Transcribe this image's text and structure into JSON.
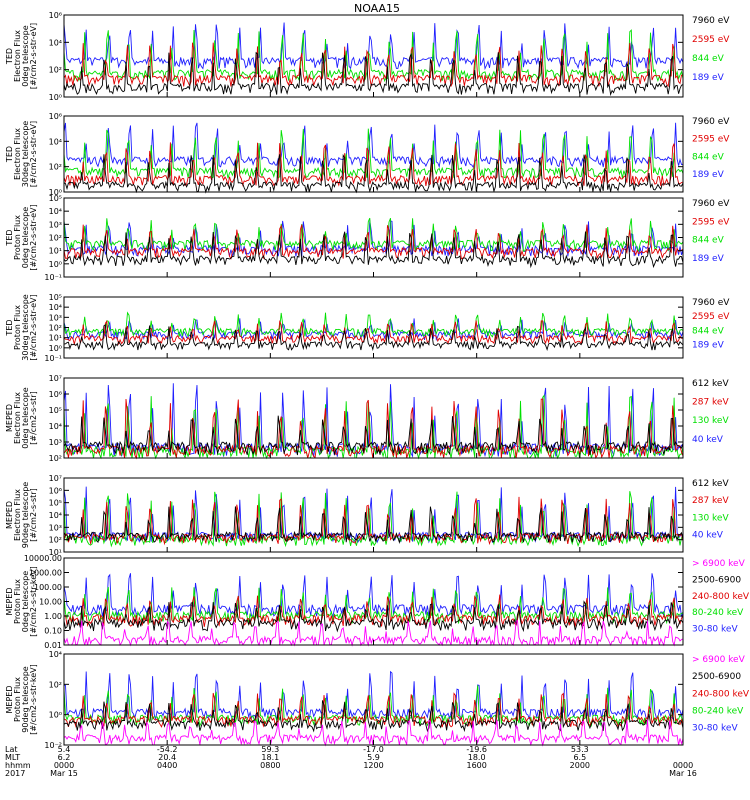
{
  "title": "NOAA15",
  "colors": {
    "ch1": "#1f1fff",
    "ch2": "#e00000",
    "ch3": "#00e000",
    "ch4": "#000000",
    "ch5": "#ff00ff"
  },
  "footer": {
    "row_labels": [
      "Lat",
      "MLT",
      "hhmm",
      "2017"
    ],
    "ticks": [
      {
        "lat": "5.4",
        "mlt": "6.2",
        "hhmm": "0000",
        "date": "Mar 15"
      },
      {
        "lat": "-54.2",
        "mlt": "20.4",
        "hhmm": "0400",
        "date": ""
      },
      {
        "lat": "59.3",
        "mlt": "18.1",
        "hhmm": "0800",
        "date": ""
      },
      {
        "lat": "-17.0",
        "mlt": "5.9",
        "hhmm": "1200",
        "date": ""
      },
      {
        "lat": "-19.6",
        "mlt": "18.0",
        "hhmm": "1600",
        "date": ""
      },
      {
        "lat": "53.3",
        "mlt": "6.5",
        "hhmm": "2000",
        "date": ""
      },
      {
        "lat": "",
        "mlt": "",
        "hhmm": "0000",
        "date": "Mar 16"
      }
    ]
  },
  "chart_data": [
    {
      "type": "line",
      "ylabel": [
        "TED",
        "Electron Flux",
        "0deg telescope",
        "[#/cm2-s-str-eV]"
      ],
      "yscale": "log",
      "ylim": [
        1,
        1000000
      ],
      "yticks": [
        "10⁰",
        "10²",
        "10⁴",
        "10⁶"
      ],
      "x": [
        "0000",
        "2400"
      ],
      "legend": [
        "7960 eV",
        "2595 eV",
        "844 eV",
        "189 eV"
      ],
      "legend_colors": [
        "ch4",
        "ch2",
        "ch3",
        "ch1"
      ],
      "series": [
        {
          "color": "ch1",
          "base": 400,
          "spike_to": 300000
        },
        {
          "color": "ch3",
          "base": 50,
          "spike_to": 100000
        },
        {
          "color": "ch2",
          "base": 20,
          "spike_to": 10000
        },
        {
          "color": "ch4",
          "base": 5,
          "spike_to": 2000
        }
      ]
    },
    {
      "type": "line",
      "ylabel": [
        "TED",
        "Electron Flux",
        "30deg telescope",
        "[#/cm2-s-str-eV]"
      ],
      "yscale": "log",
      "ylim": [
        1,
        1000000
      ],
      "yticks": [
        "10⁰",
        "10²",
        "10⁴",
        "10⁶"
      ],
      "x": [
        "0000",
        "2400"
      ],
      "legend": [
        "7960 eV",
        "2595 eV",
        "844 eV",
        "189 eV"
      ],
      "legend_colors": [
        "ch4",
        "ch2",
        "ch3",
        "ch1"
      ],
      "series": [
        {
          "color": "ch1",
          "base": 300,
          "spike_to": 300000
        },
        {
          "color": "ch3",
          "base": 40,
          "spike_to": 100000
        },
        {
          "color": "ch2",
          "base": 10,
          "spike_to": 10000
        },
        {
          "color": "ch4",
          "base": 3,
          "spike_to": 1000
        }
      ]
    },
    {
      "type": "line",
      "ylabel": [
        "TED",
        "Proton Flux",
        "0deg telescope",
        "[#/cm2-s-str-eV]"
      ],
      "yscale": "log",
      "ylim": [
        0.1,
        100000
      ],
      "yticks": [
        "10⁻¹",
        "10⁰",
        "10¹",
        "10²",
        "10³",
        "10⁴",
        "10⁵"
      ],
      "x": [
        "0000",
        "2400"
      ],
      "legend": [
        "7960 eV",
        "2595 eV",
        "844 eV",
        "189 eV"
      ],
      "legend_colors": [
        "ch4",
        "ch2",
        "ch3",
        "ch1"
      ],
      "series": [
        {
          "color": "ch1",
          "base": 12,
          "spike_to": 2000
        },
        {
          "color": "ch3",
          "base": 30,
          "spike_to": 3000
        },
        {
          "color": "ch2",
          "base": 8,
          "spike_to": 1000
        },
        {
          "color": "ch4",
          "base": 2,
          "spike_to": 300
        }
      ]
    },
    {
      "type": "line",
      "ylabel": [
        "TED",
        "Proton Flux",
        "30deg telescope",
        "[#/cm2-s-str-eV]"
      ],
      "yscale": "log",
      "ylim": [
        0.1,
        100000
      ],
      "yticks": [
        "10⁻¹",
        "10⁰",
        "10¹",
        "10²",
        "10³",
        "10⁴",
        "10⁵"
      ],
      "x": [
        "0000",
        "2400"
      ],
      "legend": [
        "7960 eV",
        "2595 eV",
        "844 eV",
        "189 eV"
      ],
      "legend_colors": [
        "ch4",
        "ch2",
        "ch3",
        "ch1"
      ],
      "series": [
        {
          "color": "ch1",
          "base": 20,
          "spike_to": 1000
        },
        {
          "color": "ch3",
          "base": 40,
          "spike_to": 3000
        },
        {
          "color": "ch2",
          "base": 8,
          "spike_to": 500
        },
        {
          "color": "ch4",
          "base": 2,
          "spike_to": 200
        }
      ]
    },
    {
      "type": "line",
      "ylabel": [
        "MEPED",
        "Electron Flux",
        "0deg telescope",
        "[#/cm2-s-str]"
      ],
      "yscale": "log",
      "ylim": [
        100,
        10000000
      ],
      "yticks": [
        "10²",
        "10³",
        "10⁴",
        "10⁵",
        "10⁶",
        "10⁷"
      ],
      "x": [
        "0000",
        "2400"
      ],
      "legend": [
        "612 keV",
        "287 keV",
        "130 keV",
        "40 keV"
      ],
      "legend_colors": [
        "ch4",
        "ch2",
        "ch3",
        "ch1"
      ],
      "series": [
        {
          "color": "ch1",
          "base": 400,
          "spike_to": 5000000
        },
        {
          "color": "ch3",
          "base": 250,
          "spike_to": 1000000
        },
        {
          "color": "ch2",
          "base": 300,
          "spike_to": 500000
        },
        {
          "color": "ch4",
          "base": 500,
          "spike_to": 50000
        }
      ]
    },
    {
      "type": "line",
      "ylabel": [
        "MEPED",
        "Electron Flux",
        "90deg telescope",
        "[#/cm2-s-str]"
      ],
      "yscale": "log",
      "ylim": [
        10,
        10000000
      ],
      "yticks": [
        "10¹",
        "10²",
        "10³",
        "10⁴",
        "10⁵",
        "10⁶",
        "10⁷"
      ],
      "x": [
        "0000",
        "2400"
      ],
      "legend": [
        "612 keV",
        "287 keV",
        "130 keV",
        "40 keV"
      ],
      "legend_colors": [
        "ch4",
        "ch2",
        "ch3",
        "ch1"
      ],
      "series": [
        {
          "color": "ch1",
          "base": 200,
          "spike_to": 3000000
        },
        {
          "color": "ch3",
          "base": 100,
          "spike_to": 1000000
        },
        {
          "color": "ch2",
          "base": 150,
          "spike_to": 300000
        },
        {
          "color": "ch4",
          "base": 200,
          "spike_to": 50000
        }
      ]
    },
    {
      "type": "line",
      "ylabel": [
        "MEPED",
        "Proton Flux",
        "0deg telescope",
        "[#/cm2-s-str-keV]"
      ],
      "yscale": "log",
      "ylim": [
        0.01,
        10000
      ],
      "yticks": [
        "0.01",
        "0.10",
        "1.00",
        "10.00",
        "100.00",
        "1000.00",
        "10000.00"
      ],
      "x": [
        "0000",
        "2400"
      ],
      "legend": [
        "> 6900 keV",
        "2500-6900",
        "240-800 keV",
        "80-240 keV",
        "30-80 keV"
      ],
      "legend_colors": [
        "ch5",
        "ch4",
        "ch2",
        "ch3",
        "ch1"
      ],
      "series": [
        {
          "color": "ch1",
          "base": 3,
          "spike_to": 1000
        },
        {
          "color": "ch3",
          "base": 1,
          "spike_to": 100
        },
        {
          "color": "ch2",
          "base": 0.6,
          "spike_to": 30
        },
        {
          "color": "ch4",
          "base": 0.3,
          "spike_to": 10
        },
        {
          "color": "ch5",
          "base": 0.02,
          "spike_to": 0.5
        }
      ]
    },
    {
      "type": "line",
      "ylabel": [
        "MEPED",
        "Proton Flux",
        "90deg telescope",
        "[#/cm2-s-str-keV]"
      ],
      "yscale": "log",
      "ylim": [
        0.01,
        100000
      ],
      "yticks": [
        "10⁻²",
        "10⁰",
        "10²",
        "10⁴"
      ],
      "x": [
        "0000",
        "2400"
      ],
      "legend": [
        "> 6900 keV",
        "2500-6900",
        "240-800 keV",
        "80-240 keV",
        "30-80 keV"
      ],
      "legend_colors": [
        "ch5",
        "ch4",
        "ch2",
        "ch3",
        "ch1"
      ],
      "series": [
        {
          "color": "ch1",
          "base": 3,
          "spike_to": 5000
        },
        {
          "color": "ch3",
          "base": 1,
          "spike_to": 500
        },
        {
          "color": "ch2",
          "base": 0.8,
          "spike_to": 100
        },
        {
          "color": "ch4",
          "base": 0.4,
          "spike_to": 30
        },
        {
          "color": "ch5",
          "base": 0.03,
          "spike_to": 1
        }
      ]
    }
  ]
}
